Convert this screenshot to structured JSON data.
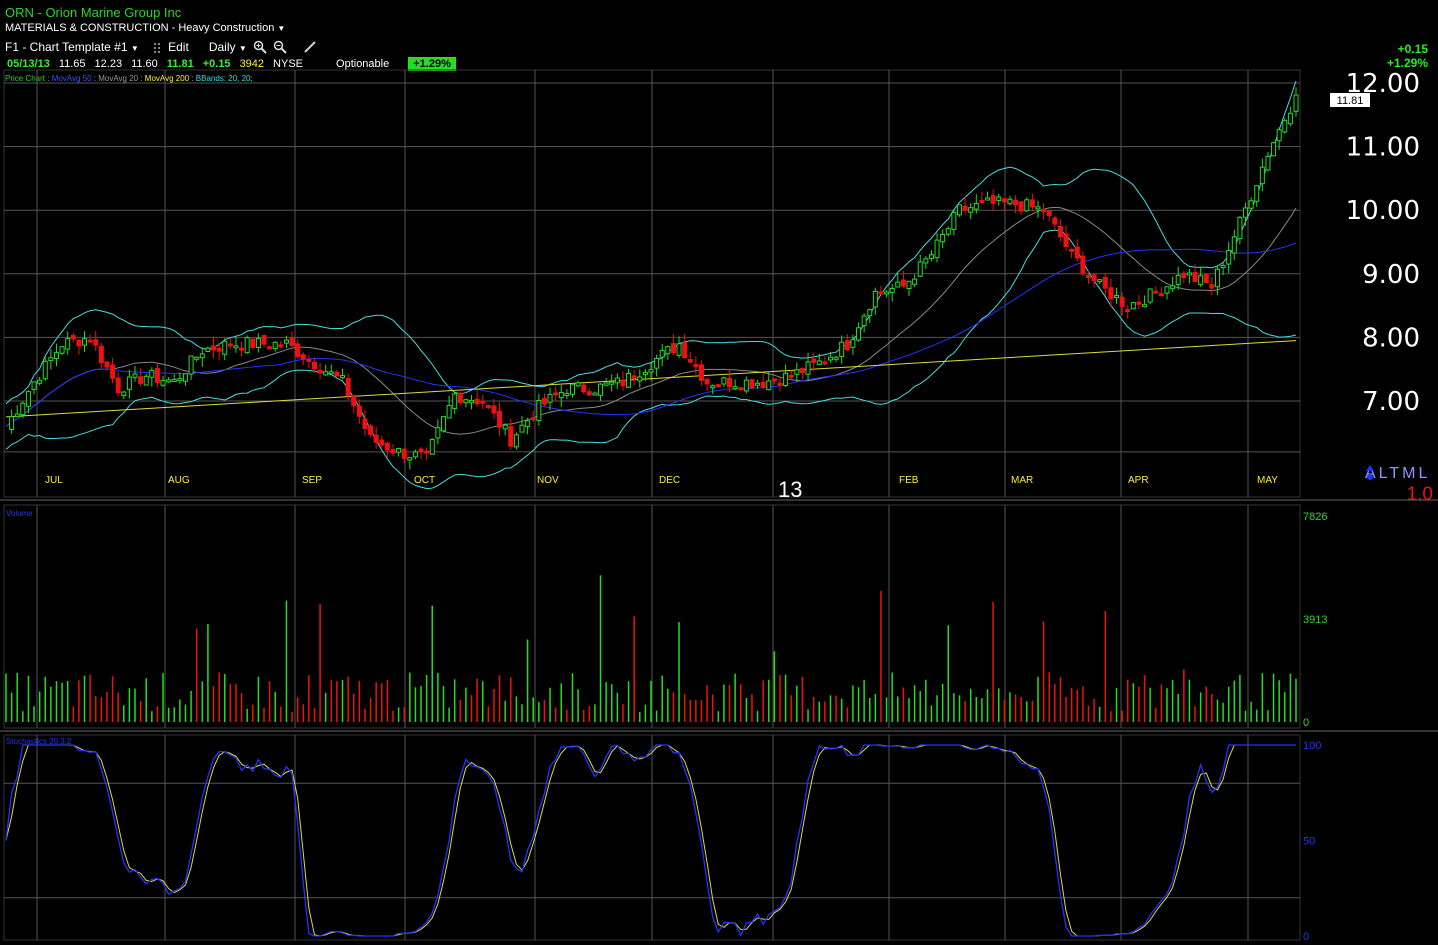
{
  "header": {
    "symbol_line": "ORN - Orion Marine Group Inc",
    "sector_line": "MATERIALS & CONSTRUCTION - Heavy Construction"
  },
  "toolbar": {
    "template": "F1 - Chart Template #1",
    "edit": "Edit",
    "period": "Daily"
  },
  "quote": {
    "date": "05/13/13",
    "open": "11.65",
    "high": "12.23",
    "low": "11.60",
    "close": "11.81",
    "change": "+0.15",
    "volume": "3942",
    "exchange": "NYSE",
    "optionable": "Optionable",
    "pct_badge": "+1.29%"
  },
  "change_box": {
    "abs": "+0.15",
    "pct": "+1.29%"
  },
  "legend": [
    {
      "text": "Price Chart",
      "color": "#2ad42a"
    },
    {
      "text": "MovAvg 50",
      "color": "#3355ff"
    },
    {
      "text": "MovAvg 20",
      "color": "#999999"
    },
    {
      "text": "MovAvg 200",
      "color": "#ffee33"
    },
    {
      "text": "BBands: 20, 20;",
      "color": "#33dddd"
    }
  ],
  "price_axis": {
    "ticks": [
      "12.00",
      "11.00",
      "10.00",
      "9.00",
      "8.00",
      "7.00"
    ],
    "values": [
      12,
      11,
      10,
      9,
      8,
      7
    ],
    "last_price_tag": "11.81"
  },
  "time_axis": {
    "labels": [
      "JUL",
      "AUG",
      "SEP",
      "OCT",
      "NOV",
      "DEC",
      "FEB",
      "MAR",
      "APR",
      "MAY"
    ],
    "year_label": "13"
  },
  "watermark": {
    "letters": "ALTML",
    "value": "1.0"
  },
  "volume_panel": {
    "title": "Volume",
    "ticks": [
      "7826",
      "3913",
      "0"
    ]
  },
  "stoch_panel": {
    "title": "Stochastics 20,3,2",
    "ticks": [
      "100",
      "50",
      "0"
    ]
  },
  "colors": {
    "up": "#22dd22",
    "down": "#ee1111",
    "grid": "#555555",
    "ma50": "#2233ff",
    "ma20": "#888888",
    "ma200": "#dddd33",
    "bbands": "#44dddd"
  },
  "chart_data": {
    "type": "line",
    "price_series": {
      "name": "ORN",
      "x": [
        "2012-06-27",
        "2012-07-02",
        "2012-07-09",
        "2012-07-16",
        "2012-07-23",
        "2012-07-30",
        "2012-08-06",
        "2012-08-13",
        "2012-08-20",
        "2012-08-27",
        "2012-09-04",
        "2012-09-10",
        "2012-09-17",
        "2012-09-24",
        "2012-10-01",
        "2012-10-08",
        "2012-10-15",
        "2012-10-22",
        "2012-10-29",
        "2012-11-05",
        "2012-11-12",
        "2012-11-19",
        "2012-11-26",
        "2012-12-03",
        "2012-12-10",
        "2012-12-17",
        "2012-12-24",
        "2012-12-31",
        "2013-01-07",
        "2013-01-14",
        "2013-01-22",
        "2013-01-28",
        "2013-02-04",
        "2013-02-11",
        "2013-02-19",
        "2013-02-25",
        "2013-03-04",
        "2013-03-11",
        "2013-03-18",
        "2013-03-25",
        "2013-04-01",
        "2013-04-08",
        "2013-04-15",
        "2013-04-22",
        "2013-04-29",
        "2013-05-06",
        "2013-05-13"
      ],
      "close": [
        6.6,
        7.3,
        7.9,
        8.0,
        7.2,
        7.4,
        7.3,
        7.8,
        7.9,
        7.9,
        7.9,
        7.6,
        7.3,
        6.4,
        6.2,
        6.1,
        7.1,
        7.0,
        6.4,
        6.9,
        7.2,
        7.2,
        7.3,
        7.6,
        7.9,
        7.3,
        7.3,
        7.3,
        7.4,
        7.6,
        7.9,
        8.7,
        8.8,
        9.3,
        10.0,
        10.1,
        10.1,
        10.0,
        9.3,
        8.8,
        8.5,
        8.7,
        9.0,
        8.8,
        9.8,
        10.9,
        11.81
      ]
    },
    "ma200": {
      "start": 6.75,
      "end": 7.95
    }
  }
}
